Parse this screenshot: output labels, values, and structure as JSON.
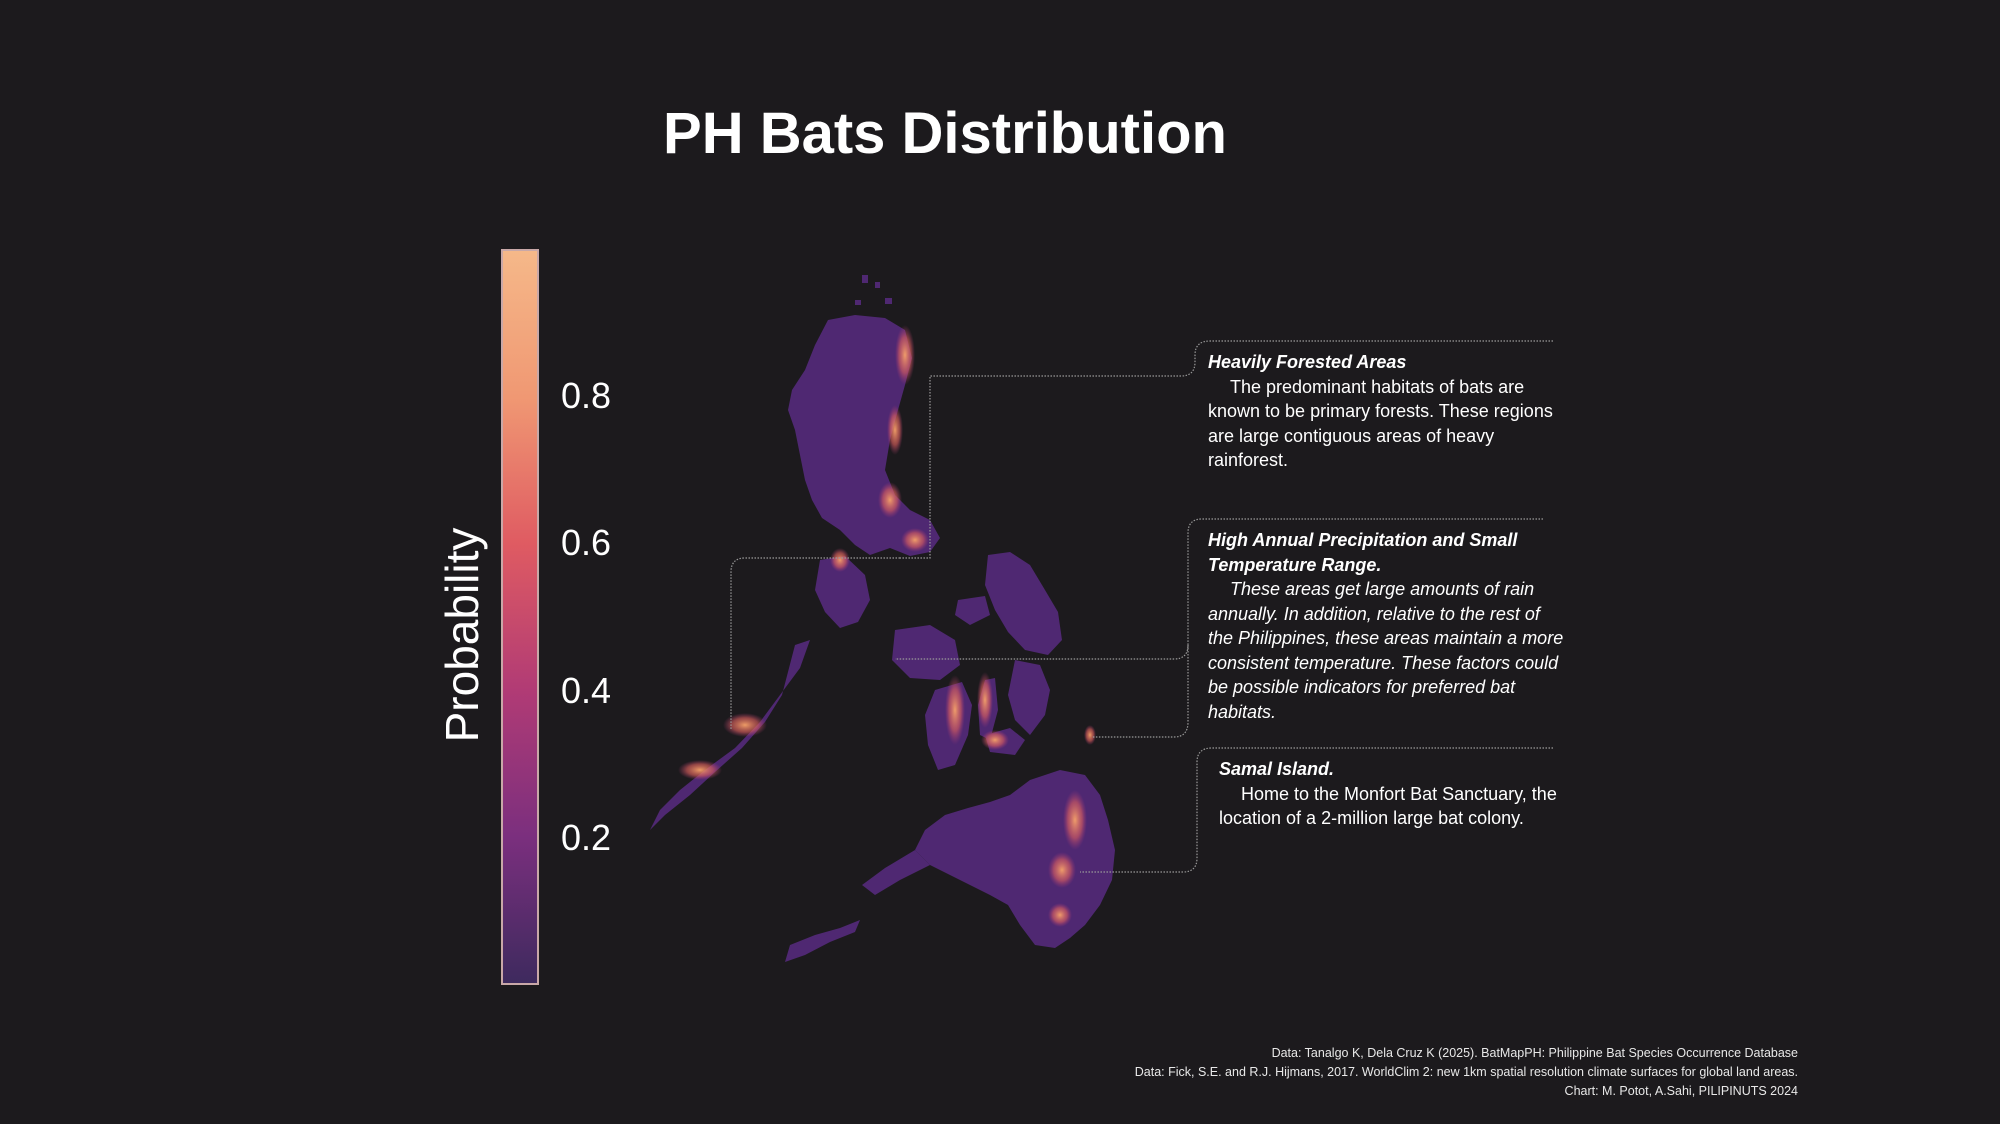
{
  "title": "PH Bats Distribution",
  "legend": {
    "title": "Probability",
    "ticks": [
      "0.8",
      "0.6",
      "0.4",
      "0.2"
    ],
    "tick_values": [
      0.8,
      0.6,
      0.4,
      0.2
    ],
    "range": [
      0,
      1
    ],
    "colors": [
      "#3e2a5e",
      "#7b2f7e",
      "#b13b75",
      "#df5b62",
      "#f09873",
      "#f5b889"
    ]
  },
  "map": {
    "region": "Philippines",
    "fill_low": "#5a2c7a",
    "fill_high": "#f7a36a"
  },
  "annotations": [
    {
      "heading": "Heavily Forested Areas",
      "body": "The predominant habitats of bats are known to be primary forests. These regions are large contiguous areas of heavy rainforest."
    },
    {
      "heading": "High Annual Precipitation and Small Temperature Range.",
      "body": "These areas get large amounts of rain annually. In addition, relative to the rest of the Philippines, these areas maintain a more consistent temperature. These factors could be possible indicators for preferred bat habitats."
    },
    {
      "heading": "Samal Island.",
      "body": "Home to the Monfort Bat Sanctuary, the location of a 2-million large bat colony."
    }
  ],
  "sources": [
    "Data: Tanalgo K, Dela Cruz K (2025). BatMapPH: Philippine Bat Species Occurrence Database",
    "Data: Fick, S.E. and R.J. Hijmans, 2017. WorldClim 2: new 1km spatial resolution climate surfaces for global land areas.",
    "Chart: M. Potot, A.Sahi,  PILIPINUTS 2024"
  ]
}
